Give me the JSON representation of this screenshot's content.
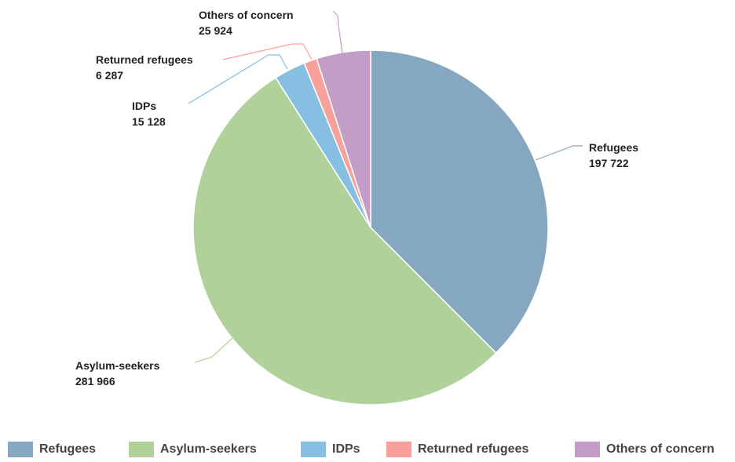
{
  "chart_data": {
    "type": "pie",
    "categories": [
      "Refugees",
      "Asylum-seekers",
      "IDPs",
      "Returned refugees",
      "Others of concern"
    ],
    "values": [
      197722,
      281966,
      15128,
      6287,
      25924
    ],
    "value_labels": [
      "197 722",
      "281 966",
      "15 128",
      "6 287",
      "25 924"
    ],
    "colors": [
      "#85a8c0",
      "#b0d29a",
      "#86bfe1",
      "#f8a099",
      "#c49dc7"
    ],
    "start_angle_deg": 0,
    "direction": "clockwise",
    "legend_position": "bottom"
  },
  "legend": {
    "items": [
      {
        "label": "Refugees",
        "color": "#85a8c0"
      },
      {
        "label": "Asylum-seekers",
        "color": "#b0d29a"
      },
      {
        "label": "IDPs",
        "color": "#86bfe1"
      },
      {
        "label": "Returned refugees",
        "color": "#f8a099"
      },
      {
        "label": "Others of concern",
        "color": "#c49dc7"
      }
    ]
  }
}
